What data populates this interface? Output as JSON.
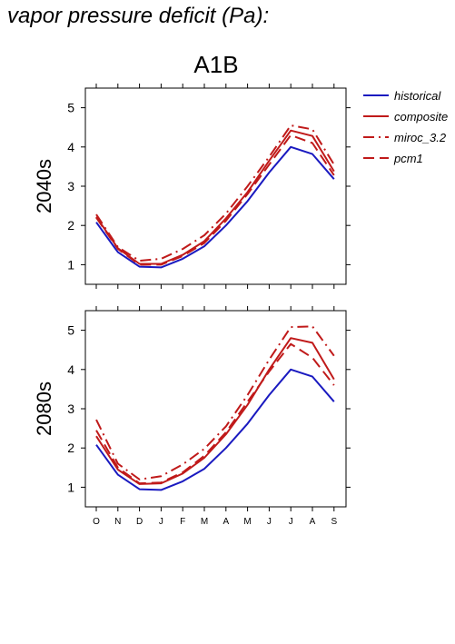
{
  "page": {
    "title": "vapor pressure deficit (Pa):",
    "scenario": "A1B"
  },
  "colors": {
    "historical": "#1a1ac0",
    "scenario": "#c01a1a",
    "axis": "#000000",
    "background": "#ffffff"
  },
  "chart_data": [
    {
      "type": "line",
      "panel_label": "2040s",
      "x": [
        "O",
        "N",
        "D",
        "J",
        "F",
        "M",
        "A",
        "M",
        "J",
        "J",
        "A",
        "S"
      ],
      "ylim": [
        0.5,
        5.5
      ],
      "yticks": [
        1,
        2,
        3,
        4,
        5
      ],
      "grid": false,
      "legend": "right",
      "series": [
        {
          "name": "historical",
          "style": "solid",
          "color_key": "historical",
          "values": [
            2.08,
            1.32,
            0.95,
            0.93,
            1.15,
            1.47,
            2.0,
            2.62,
            3.35,
            4.0,
            3.82,
            3.18
          ]
        },
        {
          "name": "composite",
          "style": "solid",
          "color_key": "scenario",
          "values": [
            2.22,
            1.42,
            1.02,
            1.02,
            1.25,
            1.6,
            2.18,
            2.85,
            3.65,
            4.42,
            4.28,
            3.38
          ]
        },
        {
          "name": "miroc_3.2",
          "style": "dashdot",
          "color_key": "scenario",
          "values": [
            2.28,
            1.45,
            1.1,
            1.15,
            1.4,
            1.75,
            2.3,
            3.0,
            3.75,
            4.55,
            4.45,
            3.55
          ]
        },
        {
          "name": "pcm1",
          "style": "dashed",
          "color_key": "scenario",
          "values": [
            2.2,
            1.4,
            1.0,
            1.0,
            1.22,
            1.55,
            2.12,
            2.8,
            3.55,
            4.3,
            4.1,
            3.28
          ]
        }
      ]
    },
    {
      "type": "line",
      "panel_label": "2080s",
      "x": [
        "O",
        "N",
        "D",
        "J",
        "F",
        "M",
        "A",
        "M",
        "J",
        "J",
        "A",
        "S"
      ],
      "ylim": [
        0.5,
        5.5
      ],
      "yticks": [
        1,
        2,
        3,
        4,
        5
      ],
      "grid": false,
      "series": [
        {
          "name": "historical",
          "style": "solid",
          "color_key": "historical",
          "values": [
            2.08,
            1.32,
            0.95,
            0.93,
            1.15,
            1.47,
            2.0,
            2.62,
            3.35,
            4.0,
            3.82,
            3.18
          ]
        },
        {
          "name": "composite",
          "style": "solid",
          "color_key": "scenario",
          "values": [
            2.3,
            1.45,
            1.08,
            1.1,
            1.35,
            1.75,
            2.35,
            3.1,
            4.0,
            4.8,
            4.68,
            3.75
          ]
        },
        {
          "name": "miroc_3.2",
          "style": "dashdot",
          "color_key": "scenario",
          "values": [
            2.72,
            1.6,
            1.2,
            1.28,
            1.58,
            1.98,
            2.55,
            3.35,
            4.25,
            5.08,
            5.1,
            4.35
          ]
        },
        {
          "name": "pcm1",
          "style": "dashed",
          "color_key": "scenario",
          "values": [
            2.45,
            1.5,
            1.1,
            1.12,
            1.38,
            1.8,
            2.4,
            3.18,
            3.95,
            4.65,
            4.3,
            3.6
          ]
        }
      ]
    }
  ]
}
